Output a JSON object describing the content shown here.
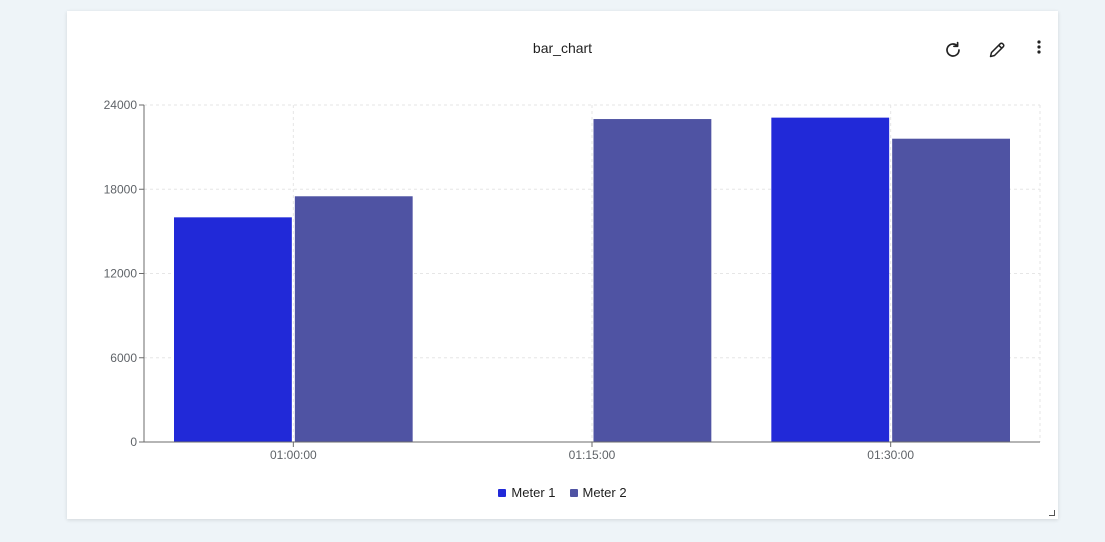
{
  "widget": {
    "title": "bar_chart",
    "icons": {
      "refresh": "refresh-icon",
      "edit": "pencil-icon",
      "more": "more-vertical-icon"
    }
  },
  "colors": {
    "meter1": "#2129d8",
    "meter2": "#4f53a3",
    "axis": "#6b6b6b",
    "grid": "#e6e6e6",
    "tick_text": "#5f6368"
  },
  "chart_data": {
    "type": "bar",
    "title": "bar_chart",
    "xlabel": "",
    "ylabel": "",
    "categories": [
      "01:00:00",
      "01:15:00",
      "01:30:00"
    ],
    "series": [
      {
        "name": "Meter 1",
        "values": [
          16000,
          null,
          23100
        ]
      },
      {
        "name": "Meter 2",
        "values": [
          17500,
          23000,
          21600
        ]
      }
    ],
    "ylim": [
      0,
      24000
    ],
    "yticks": [
      "0",
      "6000",
      "12000",
      "18000",
      "24000"
    ],
    "grid": true,
    "legend_position": "bottom-center"
  }
}
